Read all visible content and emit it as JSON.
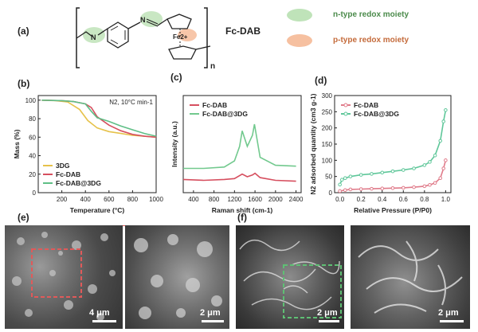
{
  "panel_a": {
    "label": "(a)",
    "compound": "Fc-DAB",
    "iron_label": "Fe2+",
    "repeat_n": "n",
    "n_type_label": "n-type redox moiety",
    "p_type_label": "p-type redox moiety",
    "n_type_color": "#9fd39a",
    "p_type_color": "#f2a882"
  },
  "panel_e": {
    "label": "(e)",
    "scale_left": "4 μm",
    "scale_right": "2 μm",
    "box_color": "#e05a5a"
  },
  "panel_f": {
    "label": "(f)",
    "scale_left": "2 μm",
    "scale_right": "2 μm",
    "box_color": "#5fbf74"
  },
  "chart_data": [
    {
      "panel": "(b)",
      "type": "line",
      "annotation": "N2, 10°C min-1",
      "xlabel": "Temperature (°C)",
      "ylabel": "Mass (%)",
      "xlim": [
        0,
        1000
      ],
      "ylim": [
        0,
        105
      ],
      "xticks": [
        "200",
        "400",
        "600",
        "800",
        "1000"
      ],
      "yticks": [
        "0",
        "20",
        "40",
        "60",
        "80",
        "100"
      ],
      "legend_position": "bottom-left",
      "series": [
        {
          "name": "3DG",
          "color": "#e6c24a",
          "x": [
            30,
            150,
            250,
            350,
            420,
            500,
            600,
            700,
            800,
            900,
            1000
          ],
          "y": [
            100,
            99.5,
            98,
            90,
            78,
            70,
            66,
            64,
            62,
            61,
            60
          ]
        },
        {
          "name": "Fc-DAB",
          "color": "#d64f5f",
          "x": [
            30,
            200,
            300,
            400,
            450,
            500,
            600,
            700,
            800,
            900,
            1000
          ],
          "y": [
            100,
            99.5,
            98.5,
            96,
            92,
            82,
            73,
            67,
            63,
            61,
            60
          ]
        },
        {
          "name": "Fc-DAB@3DG",
          "color": "#5fbf86",
          "x": [
            30,
            200,
            300,
            400,
            450,
            500,
            600,
            700,
            800,
            900,
            1000
          ],
          "y": [
            100,
            99.5,
            98.5,
            96,
            88,
            81,
            77,
            72,
            68,
            64,
            61
          ]
        }
      ]
    },
    {
      "panel": "(c)",
      "type": "line",
      "xlabel": "Raman shift (cm-1)",
      "ylabel": "Intensity (a.u.)",
      "xlim": [
        200,
        2500
      ],
      "xticks": [
        "400",
        "800",
        "1200",
        "1600",
        "2000",
        "2400"
      ],
      "legend_position": "top-left",
      "series": [
        {
          "name": "Fc-DAB",
          "color": "#d64f5f",
          "x": [
            200,
            600,
            1000,
            1200,
            1350,
            1450,
            1550,
            1600,
            1700,
            2000,
            2400
          ],
          "y": [
            0.3,
            0.28,
            0.3,
            0.32,
            0.42,
            0.36,
            0.4,
            0.44,
            0.34,
            0.28,
            0.26
          ]
        },
        {
          "name": "Fc-DAB@3DG",
          "color": "#72c98e",
          "x": [
            200,
            600,
            1000,
            1200,
            1300,
            1350,
            1450,
            1550,
            1590,
            1700,
            2000,
            2400
          ],
          "y": [
            0.55,
            0.55,
            0.58,
            0.72,
            1.05,
            1.4,
            1.05,
            1.3,
            1.55,
            0.8,
            0.62,
            0.6
          ]
        }
      ]
    },
    {
      "panel": "(d)",
      "type": "line",
      "xlabel": "Relative Pressure (P/P0)",
      "ylabel": "N2 adsorbed quantity (cm3 g-1)",
      "xlim": [
        -0.05,
        1.05
      ],
      "ylim": [
        0,
        300
      ],
      "xticks": [
        "0.0",
        "0.2",
        "0.4",
        "0.6",
        "0.8",
        "1.0"
      ],
      "yticks": [
        "0",
        "50",
        "100",
        "150",
        "200",
        "250",
        "300"
      ],
      "legend_position": "top-left",
      "series": [
        {
          "name": "Fc-DAB",
          "color": "#e07b8a",
          "x": [
            0.0,
            0.05,
            0.1,
            0.2,
            0.3,
            0.4,
            0.5,
            0.6,
            0.7,
            0.8,
            0.85,
            0.9,
            0.95,
            0.98,
            1.0
          ],
          "y": [
            5,
            8,
            10,
            11,
            12,
            13,
            14,
            15,
            17,
            20,
            24,
            30,
            45,
            75,
            100
          ]
        },
        {
          "name": "Fc-DAB@3DG",
          "color": "#5fc79a",
          "x": [
            0.0,
            0.02,
            0.05,
            0.1,
            0.2,
            0.3,
            0.4,
            0.5,
            0.6,
            0.7,
            0.8,
            0.85,
            0.9,
            0.95,
            0.98,
            1.0
          ],
          "y": [
            25,
            40,
            45,
            50,
            55,
            58,
            62,
            66,
            70,
            75,
            85,
            95,
            115,
            160,
            220,
            255
          ]
        }
      ]
    }
  ]
}
